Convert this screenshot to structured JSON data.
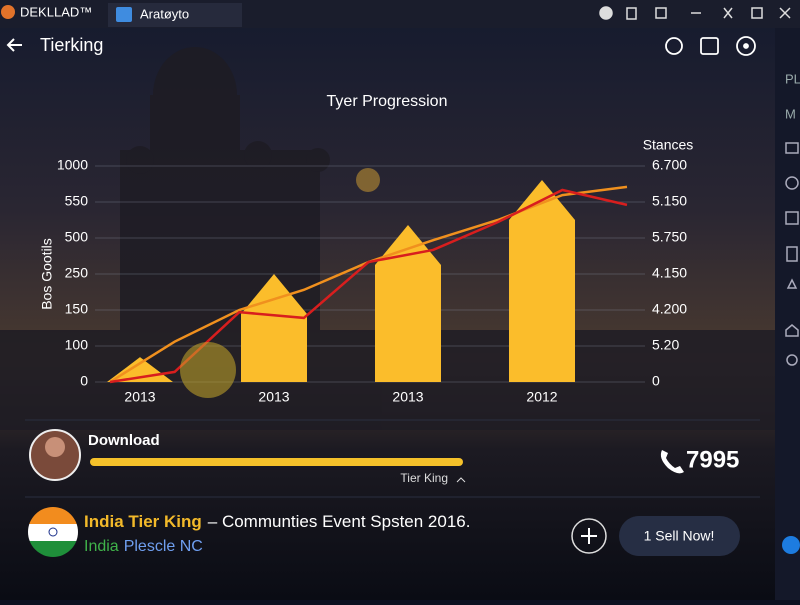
{
  "window": {
    "tabs": [
      "DEKLLAD™",
      "Aratøyto"
    ]
  },
  "header": {
    "title": "Tierking"
  },
  "sidebar": {
    "labels": [
      "PL",
      "M"
    ]
  },
  "chart_data": {
    "type": "bar",
    "title": "Tyer Progression",
    "y_label": "Bos Gootils",
    "y2_label": "Stances",
    "categories": [
      "2013",
      "2013",
      "2013",
      "2012"
    ],
    "values": [
      69,
      250,
      518,
      825
    ],
    "color": "#fbbd2b",
    "lines": [
      {
        "color": "#f0901e",
        "values": [
          0,
          106,
          150,
          206,
          333,
          485,
          525,
          636,
          739
        ]
      },
      {
        "color": "#d81e1e",
        "values": [
          0,
          28,
          147,
          139,
          333,
          417,
          522,
          700,
          546
        ]
      }
    ],
    "ylim": [
      0,
      1000
    ],
    "yticks": [
      0,
      100,
      150,
      250,
      500,
      550,
      1000
    ],
    "yscale": "piecewise",
    "y2lim": [
      0,
      6.7
    ],
    "y2ticks": [
      0,
      {
        "value": 5.2,
        "label": "5.20"
      },
      {
        "value": 4.2,
        "label": "4.200"
      },
      {
        "value": 4.15,
        "label": "4.150"
      },
      {
        "value": 5.75,
        "label": "5.750"
      },
      {
        "value": 5.15,
        "label": "5.150"
      },
      {
        "value": 6.7,
        "label": "6.700"
      }
    ],
    "y2scale": "piecewise",
    "grid": true
  },
  "card": {
    "title": "Download",
    "progress_label": "Tier King",
    "count": 7995
  },
  "event": {
    "title_highlight": "India Tier King",
    "title_rest": "– Communties Event Spsten 2016.",
    "subtitle_a": "India",
    "subtitle_b": "Plescle NC",
    "button": "1 Sell Now!"
  }
}
